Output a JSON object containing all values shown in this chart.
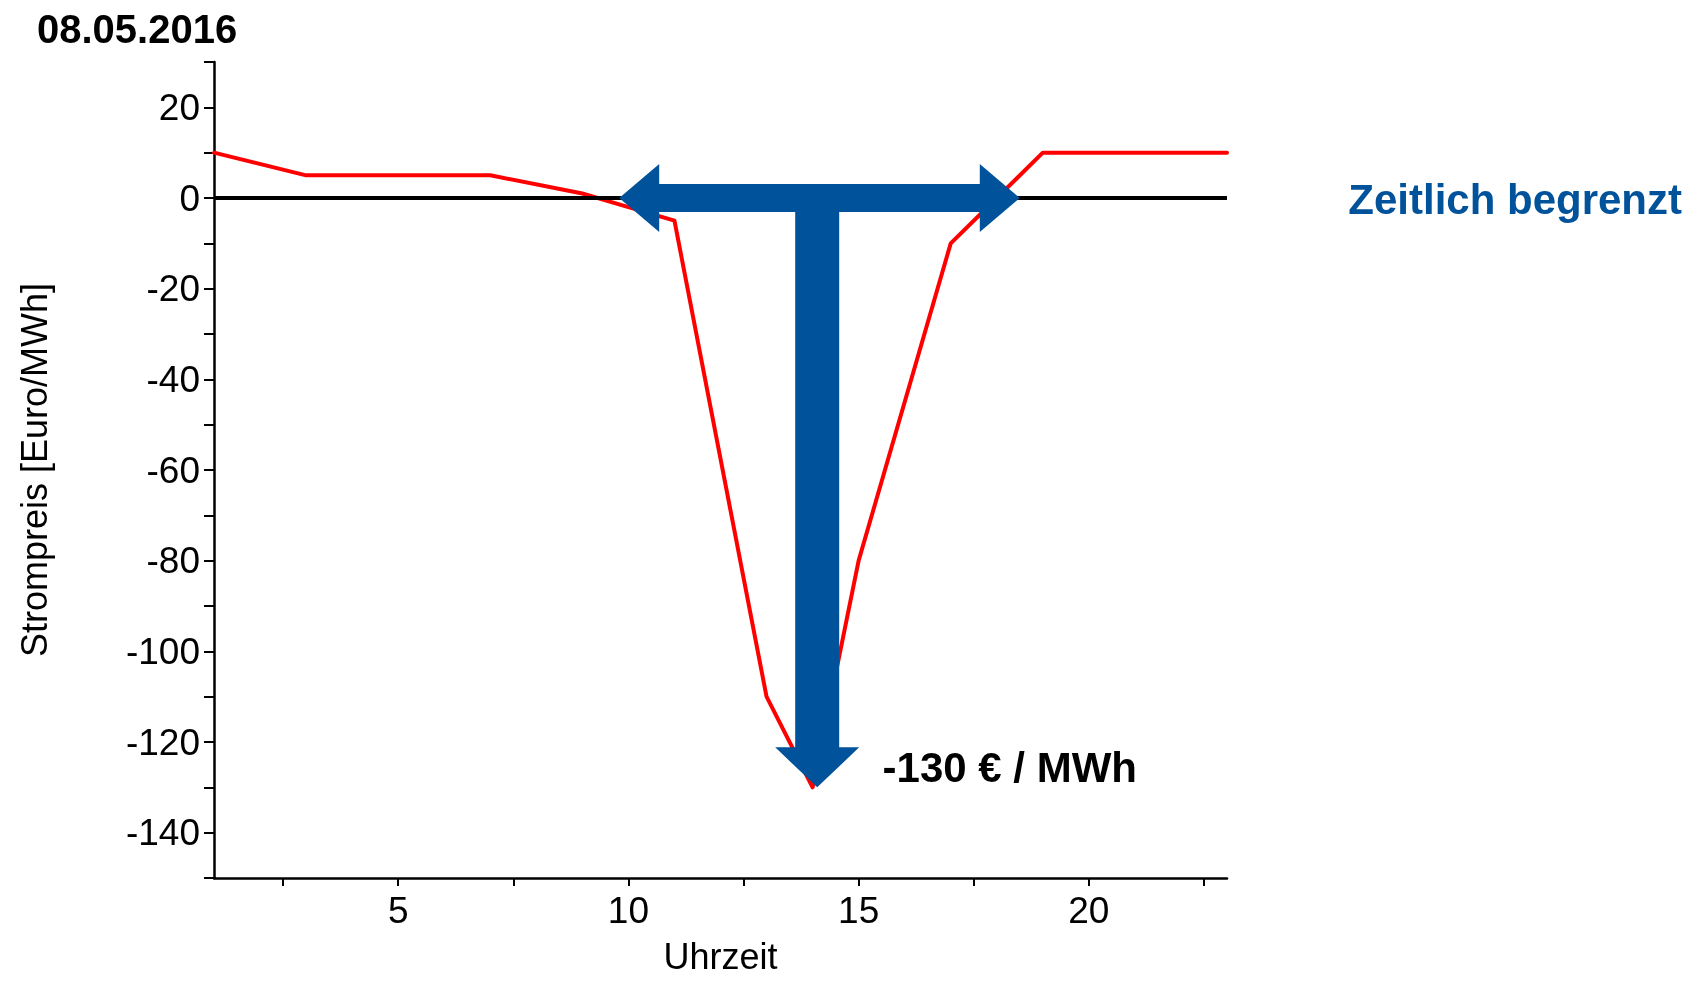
{
  "chart_data": {
    "type": "line",
    "title": "08.05.2016",
    "xlabel": "Uhrzeit",
    "ylabel": "Strompreis [Euro/MWh]",
    "x": [
      1,
      3,
      7,
      9,
      10,
      11,
      13,
      14,
      15,
      17,
      19,
      23
    ],
    "series": [
      {
        "color": "#ff0000",
        "values": [
          10,
          5,
          5,
          1,
          -2,
          -5,
          -110,
          -130,
          -80,
          -10,
          10,
          10
        ]
      }
    ],
    "xlim": [
      1,
      23
    ],
    "xticks": [
      {
        "value": 2.5,
        "label": null
      },
      5,
      {
        "value": 7.5,
        "label": null
      },
      10,
      {
        "value": 12.5,
        "label": null
      },
      15,
      {
        "value": 17.5,
        "label": null
      },
      20,
      {
        "value": 22.5,
        "label": null
      }
    ],
    "ylim": [
      -150,
      30
    ],
    "yticks": [
      {
        "value": -150,
        "label": null
      },
      -140,
      {
        "value": -130,
        "label": null
      },
      -120,
      {
        "value": -110,
        "label": null
      },
      -100,
      {
        "value": -90,
        "label": null
      },
      -80,
      {
        "value": -70,
        "label": null
      },
      -60,
      {
        "value": -50,
        "label": null
      },
      -40,
      {
        "value": -30,
        "label": null
      },
      -20,
      {
        "value": -10,
        "label": null
      },
      0,
      {
        "value": 10,
        "label": null
      },
      20,
      {
        "value": 30,
        "label": null
      }
    ],
    "grid": false,
    "marker": "none",
    "line_style": "solid",
    "ref_lines": [
      {
        "axis": "y",
        "value": 0,
        "color": "#000000",
        "line_style": "solid"
      }
    ],
    "annotations": [
      "Zeitlich begrenzt",
      {
        "text": "-130 € / MWh",
        "x": 14,
        "y": -130
      }
    ]
  }
}
